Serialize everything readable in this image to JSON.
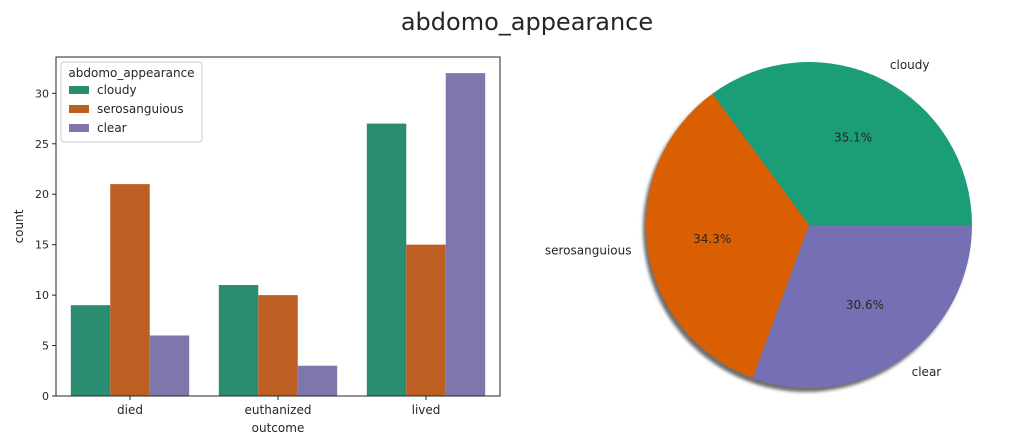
{
  "figure": {
    "suptitle": "abdomo_appearance"
  },
  "colors": {
    "cloudy_bar": "#2a8c70",
    "serosanguious_bar": "#bd5f23",
    "clear_bar": "#7d77ab",
    "cloudy_pie": "#1b9e77",
    "serosanguious_pie": "#d95f02",
    "clear_pie": "#7570b3"
  },
  "chart_data": [
    {
      "type": "bar",
      "xlabel": "outcome",
      "ylabel": "count",
      "categories": [
        "died",
        "euthanized",
        "lived"
      ],
      "ylim": [
        0,
        33.6
      ],
      "yticks": [
        0,
        5,
        10,
        15,
        20,
        25,
        30
      ],
      "grid": false,
      "legend": {
        "title": "abdomo_appearance",
        "placement": "top-left"
      },
      "series": [
        {
          "name": "cloudy",
          "values": [
            9,
            11,
            27
          ]
        },
        {
          "name": "serosanguious",
          "values": [
            21,
            10,
            15
          ]
        },
        {
          "name": "clear",
          "values": [
            6,
            3,
            32
          ]
        }
      ]
    },
    {
      "type": "pie",
      "shadow": true,
      "start_angle_deg": 0,
      "slices": [
        {
          "label": "cloudy",
          "value": 35.1,
          "pct_label": "35.1%"
        },
        {
          "label": "serosanguious",
          "value": 34.3,
          "pct_label": "34.3%"
        },
        {
          "label": "clear",
          "value": 30.6,
          "pct_label": "30.6%"
        }
      ]
    }
  ]
}
